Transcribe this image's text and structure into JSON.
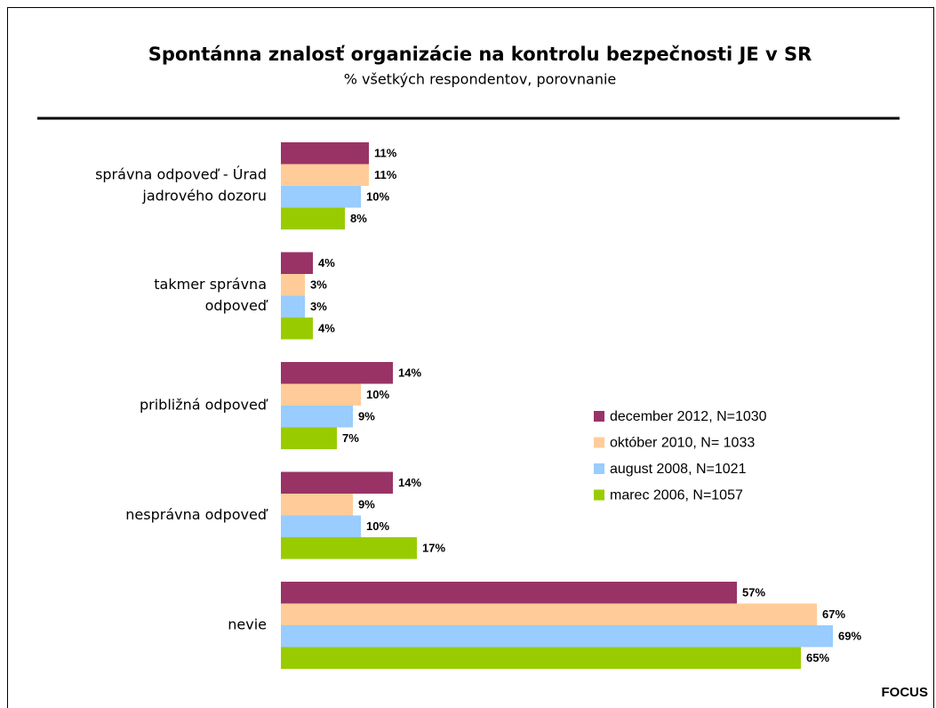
{
  "chart_data": {
    "type": "bar",
    "orientation": "horizontal",
    "title": "Spontánna znalosť organizácie na kontrolu bezpečnosti JE v SR",
    "subtitle": "% všetkých respondentov, porovnanie",
    "source": "FOCUS",
    "categories": [
      [
        "správna odpoveď - Úrad",
        "jadrového dozoru"
      ],
      [
        "takmer správna",
        "odpoveď"
      ],
      [
        "približná odpoveď"
      ],
      [
        "nesprávna odpoveď"
      ],
      [
        "nevie"
      ]
    ],
    "series": [
      {
        "name": "december 2012, N=1030",
        "color": "#993366",
        "values": [
          11,
          4,
          14,
          14,
          57
        ],
        "value_labels": [
          "11%",
          "4%",
          "14%",
          "14%",
          "57%"
        ]
      },
      {
        "name": "október 2010, N= 1033",
        "color": "#ffcc99",
        "values": [
          11,
          3,
          10,
          9,
          67
        ],
        "value_labels": [
          "11%",
          "3%",
          "10%",
          "9%",
          "67%"
        ]
      },
      {
        "name": "august 2008, N=1021",
        "color": "#99ccff",
        "values": [
          10,
          3,
          9,
          10,
          69
        ],
        "value_labels": [
          "10%",
          "3%",
          "9%",
          "10%",
          "69%"
        ]
      },
      {
        "name": "marec 2006, N=1057",
        "color": "#99cc00",
        "values": [
          8,
          4,
          7,
          17,
          65
        ],
        "value_labels": [
          "8%",
          "4%",
          "7%",
          "17%",
          "65%"
        ]
      }
    ]
  }
}
